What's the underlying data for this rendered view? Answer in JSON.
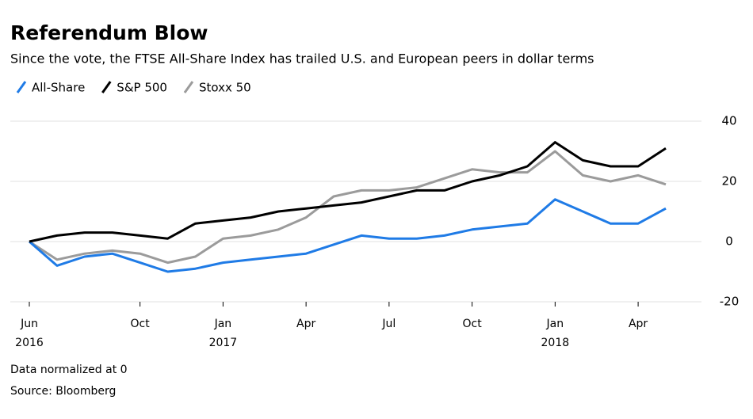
{
  "chart_data": {
    "type": "line",
    "title": "Referendum Blow",
    "subtitle": "Since the vote, the FTSE All-Share Index has trailed U.S. and European peers in dollar terms",
    "note": "Data normalized at 0",
    "source": "Source: Bloomberg",
    "x": [
      "2016-06",
      "2016-07",
      "2016-08",
      "2016-09",
      "2016-10",
      "2016-11",
      "2016-12",
      "2017-01",
      "2017-02",
      "2017-03",
      "2017-04",
      "2017-05",
      "2017-06",
      "2017-07",
      "2017-08",
      "2017-09",
      "2017-10",
      "2017-11",
      "2017-12",
      "2018-01",
      "2018-02",
      "2018-03",
      "2018-04",
      "2018-05"
    ],
    "series": [
      {
        "name": "All-Share",
        "color": "#1f7be6",
        "values": [
          0,
          -8,
          -5,
          -4,
          -7,
          -10,
          -9,
          -7,
          -6,
          -5,
          -4,
          -1,
          2,
          1,
          1,
          2,
          4,
          5,
          6,
          14,
          10,
          6,
          6,
          11
        ]
      },
      {
        "name": "S&P 500",
        "color": "#000000",
        "values": [
          0,
          2,
          3,
          3,
          2,
          1,
          6,
          7,
          8,
          10,
          11,
          12,
          13,
          15,
          17,
          17,
          20,
          22,
          25,
          33,
          27,
          25,
          25,
          31
        ]
      },
      {
        "name": "Stoxx 50",
        "color": "#9b9b9b",
        "values": [
          0,
          -6,
          -4,
          -3,
          -4,
          -7,
          -5,
          1,
          2,
          4,
          8,
          15,
          17,
          17,
          18,
          21,
          24,
          23,
          23,
          30,
          22,
          20,
          22,
          19
        ]
      }
    ],
    "xlim": [
      "2016-06",
      "2018-05"
    ],
    "xticks": [
      {
        "value": "2016-06",
        "label": "Jun",
        "year": "2016"
      },
      {
        "value": "2016-10",
        "label": "Oct"
      },
      {
        "value": "2017-01",
        "label": "Jan",
        "year": "2017"
      },
      {
        "value": "2017-04",
        "label": "Apr"
      },
      {
        "value": "2017-07",
        "label": "Jul"
      },
      {
        "value": "2017-10",
        "label": "Oct"
      },
      {
        "value": "2018-01",
        "label": "Jan",
        "year": "2018"
      },
      {
        "value": "2018-04",
        "label": "Apr"
      }
    ],
    "ylim": [
      -20,
      40
    ],
    "yticks": [
      -20,
      0,
      20,
      40
    ],
    "grid": true
  }
}
